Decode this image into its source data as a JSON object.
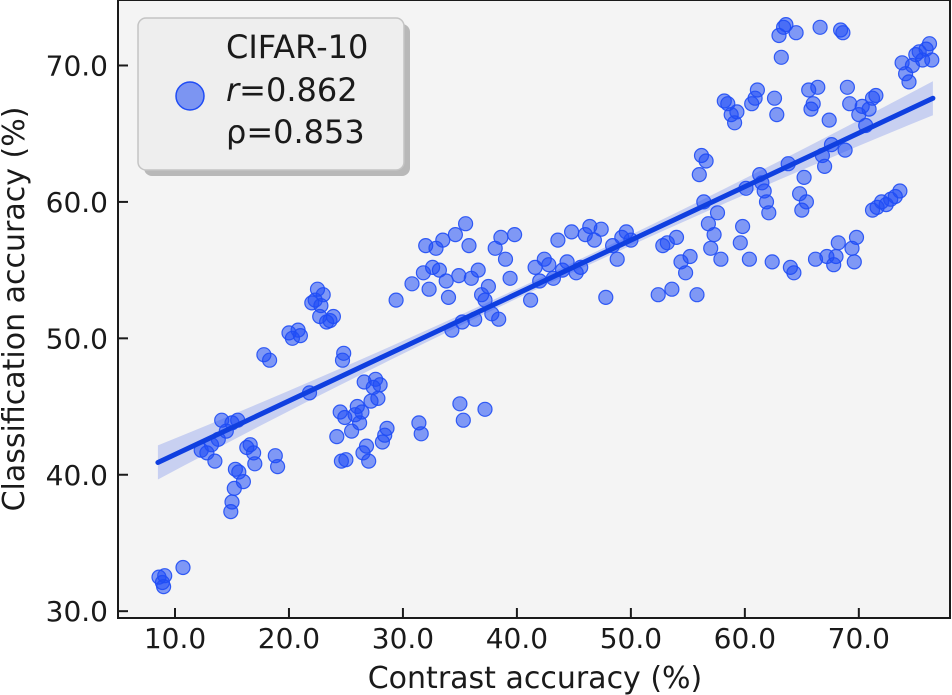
{
  "chart_data": {
    "type": "scatter",
    "title": "",
    "xlabel": "Contrast accuracy (%)",
    "ylabel": "Classification accuracy (%)",
    "xlim": [
      5.0,
      78.0
    ],
    "ylim": [
      29.5,
      74.8
    ],
    "xticks": [
      10.0,
      20.0,
      30.0,
      40.0,
      50.0,
      60.0,
      70.0
    ],
    "yticks": [
      30.0,
      40.0,
      50.0,
      60.0,
      70.0
    ],
    "xtick_labels": [
      "10.0",
      "20.0",
      "30.0",
      "40.0",
      "50.0",
      "60.0",
      "70.0"
    ],
    "ytick_labels": [
      "30.0",
      "40.0",
      "50.0",
      "60.0",
      "70.0"
    ],
    "grid": false,
    "legend": {
      "placement": "top-left",
      "dataset": "CIFAR-10",
      "r_symbol": "r",
      "r_value": "=0.862",
      "rho_text": "ρ=0.853"
    },
    "colors": {
      "points": "#1f4cf5",
      "fit_line": "#0f3fe0",
      "ci_band": "#aab8ee",
      "background": "#f4f4f4"
    },
    "fit_line": {
      "x": [
        8.5,
        76.5
      ],
      "y": [
        40.9,
        67.6
      ]
    },
    "series": [
      {
        "points": [
          [
            8.6,
            32.5
          ],
          [
            8.9,
            32.1
          ],
          [
            9.0,
            31.8
          ],
          [
            9.1,
            32.6
          ],
          [
            10.7,
            33.2
          ],
          [
            12.3,
            41.8
          ],
          [
            12.8,
            41.6
          ],
          [
            13.2,
            42.2
          ],
          [
            13.5,
            41.0
          ],
          [
            13.8,
            42.6
          ],
          [
            14.1,
            44.0
          ],
          [
            14.5,
            43.2
          ],
          [
            15.0,
            43.8
          ],
          [
            15.5,
            44.0
          ],
          [
            14.9,
            37.3
          ],
          [
            15.0,
            38.0
          ],
          [
            15.2,
            39.0
          ],
          [
            15.3,
            40.4
          ],
          [
            15.6,
            40.2
          ],
          [
            16.0,
            39.5
          ],
          [
            16.3,
            42.0
          ],
          [
            16.6,
            42.2
          ],
          [
            16.9,
            41.6
          ],
          [
            17.0,
            40.8
          ],
          [
            17.8,
            48.8
          ],
          [
            18.3,
            48.4
          ],
          [
            18.8,
            41.4
          ],
          [
            19.0,
            40.6
          ],
          [
            20.0,
            50.4
          ],
          [
            20.3,
            50.0
          ],
          [
            20.8,
            50.6
          ],
          [
            21.0,
            50.2
          ],
          [
            21.8,
            46.0
          ],
          [
            22.0,
            52.6
          ],
          [
            22.3,
            52.8
          ],
          [
            22.5,
            53.6
          ],
          [
            22.7,
            51.6
          ],
          [
            22.8,
            52.4
          ],
          [
            23.0,
            53.2
          ],
          [
            23.3,
            51.2
          ],
          [
            23.6,
            51.3
          ],
          [
            23.9,
            51.6
          ],
          [
            24.2,
            42.8
          ],
          [
            24.5,
            44.6
          ],
          [
            24.6,
            41.0
          ],
          [
            24.7,
            48.4
          ],
          [
            24.8,
            48.9
          ],
          [
            24.9,
            44.2
          ],
          [
            25.0,
            41.1
          ],
          [
            25.5,
            43.2
          ],
          [
            25.8,
            44.4
          ],
          [
            26.0,
            45.0
          ],
          [
            26.2,
            43.8
          ],
          [
            26.4,
            44.6
          ],
          [
            26.5,
            41.6
          ],
          [
            26.6,
            46.8
          ],
          [
            26.8,
            42.1
          ],
          [
            27.0,
            41.0
          ],
          [
            27.2,
            45.4
          ],
          [
            27.4,
            46.4
          ],
          [
            27.6,
            47.0
          ],
          [
            27.8,
            45.6
          ],
          [
            28.0,
            46.6
          ],
          [
            28.2,
            42.4
          ],
          [
            28.4,
            42.9
          ],
          [
            28.6,
            43.4
          ],
          [
            29.4,
            52.8
          ],
          [
            30.8,
            54.0
          ],
          [
            31.4,
            43.8
          ],
          [
            31.6,
            43.0
          ],
          [
            31.8,
            54.8
          ],
          [
            32.0,
            56.8
          ],
          [
            32.3,
            53.6
          ],
          [
            32.6,
            55.2
          ],
          [
            32.9,
            56.6
          ],
          [
            33.2,
            55.0
          ],
          [
            33.5,
            57.2
          ],
          [
            33.8,
            54.2
          ],
          [
            34.0,
            53.0
          ],
          [
            34.3,
            50.6
          ],
          [
            34.6,
            57.6
          ],
          [
            34.9,
            54.6
          ],
          [
            35.2,
            51.2
          ],
          [
            35.5,
            58.4
          ],
          [
            35.8,
            56.8
          ],
          [
            35.0,
            45.2
          ],
          [
            35.3,
            44.0
          ],
          [
            37.2,
            44.8
          ],
          [
            36.0,
            54.4
          ],
          [
            36.3,
            51.4
          ],
          [
            36.6,
            55.0
          ],
          [
            36.9,
            53.2
          ],
          [
            37.2,
            52.8
          ],
          [
            37.5,
            53.8
          ],
          [
            37.8,
            51.8
          ],
          [
            38.1,
            56.6
          ],
          [
            38.4,
            51.4
          ],
          [
            38.6,
            57.4
          ],
          [
            39.0,
            55.8
          ],
          [
            39.4,
            54.4
          ],
          [
            39.8,
            57.6
          ],
          [
            41.2,
            52.8
          ],
          [
            41.6,
            55.2
          ],
          [
            42.0,
            54.2
          ],
          [
            42.4,
            55.8
          ],
          [
            42.8,
            55.4
          ],
          [
            43.2,
            54.4
          ],
          [
            43.6,
            57.2
          ],
          [
            44.0,
            55.0
          ],
          [
            44.4,
            55.6
          ],
          [
            44.8,
            57.8
          ],
          [
            45.2,
            54.8
          ],
          [
            45.6,
            55.2
          ],
          [
            46.0,
            57.6
          ],
          [
            46.4,
            58.2
          ],
          [
            46.8,
            57.2
          ],
          [
            47.4,
            58.0
          ],
          [
            47.8,
            53.0
          ],
          [
            48.4,
            56.8
          ],
          [
            48.8,
            55.8
          ],
          [
            49.2,
            57.4
          ],
          [
            49.6,
            57.8
          ],
          [
            50.0,
            57.2
          ],
          [
            52.4,
            53.2
          ],
          [
            52.8,
            56.8
          ],
          [
            53.2,
            57.0
          ],
          [
            53.6,
            53.6
          ],
          [
            54.0,
            57.4
          ],
          [
            54.4,
            55.6
          ],
          [
            54.8,
            54.8
          ],
          [
            55.2,
            56.0
          ],
          [
            55.8,
            53.2
          ],
          [
            56.0,
            62.0
          ],
          [
            56.2,
            63.4
          ],
          [
            56.4,
            60.0
          ],
          [
            56.6,
            63.0
          ],
          [
            56.8,
            58.4
          ],
          [
            57.0,
            56.6
          ],
          [
            57.3,
            57.6
          ],
          [
            57.6,
            59.2
          ],
          [
            57.9,
            55.8
          ],
          [
            58.2,
            67.4
          ],
          [
            58.5,
            67.2
          ],
          [
            58.8,
            66.4
          ],
          [
            59.1,
            65.8
          ],
          [
            59.3,
            66.6
          ],
          [
            59.6,
            57.0
          ],
          [
            59.8,
            58.2
          ],
          [
            60.1,
            61.0
          ],
          [
            60.4,
            55.8
          ],
          [
            60.6,
            67.2
          ],
          [
            60.9,
            67.6
          ],
          [
            61.1,
            68.2
          ],
          [
            61.3,
            62.0
          ],
          [
            61.5,
            61.4
          ],
          [
            61.7,
            60.8
          ],
          [
            61.9,
            60.0
          ],
          [
            62.1,
            59.2
          ],
          [
            62.4,
            55.6
          ],
          [
            62.6,
            67.6
          ],
          [
            62.8,
            66.4
          ],
          [
            63.0,
            72.2
          ],
          [
            63.2,
            70.6
          ],
          [
            63.4,
            72.8
          ],
          [
            63.6,
            73.0
          ],
          [
            63.8,
            62.8
          ],
          [
            64.0,
            55.2
          ],
          [
            64.3,
            54.8
          ],
          [
            64.5,
            72.4
          ],
          [
            64.8,
            60.6
          ],
          [
            65.0,
            59.4
          ],
          [
            65.2,
            61.8
          ],
          [
            65.4,
            60.0
          ],
          [
            65.6,
            68.2
          ],
          [
            65.8,
            66.8
          ],
          [
            66.0,
            67.2
          ],
          [
            66.2,
            55.8
          ],
          [
            66.4,
            68.4
          ],
          [
            66.6,
            72.8
          ],
          [
            66.8,
            63.4
          ],
          [
            67.0,
            62.6
          ],
          [
            67.2,
            56.0
          ],
          [
            67.4,
            66.0
          ],
          [
            67.6,
            64.2
          ],
          [
            67.8,
            55.4
          ],
          [
            68.0,
            56.0
          ],
          [
            68.2,
            57.0
          ],
          [
            68.4,
            72.6
          ],
          [
            68.6,
            72.4
          ],
          [
            68.8,
            63.8
          ],
          [
            69.0,
            68.4
          ],
          [
            69.2,
            67.2
          ],
          [
            69.4,
            56.6
          ],
          [
            69.6,
            55.6
          ],
          [
            69.8,
            57.4
          ],
          [
            70.0,
            66.4
          ],
          [
            70.3,
            67.0
          ],
          [
            70.6,
            65.6
          ],
          [
            70.9,
            66.8
          ],
          [
            71.2,
            67.6
          ],
          [
            71.5,
            67.8
          ],
          [
            71.2,
            59.4
          ],
          [
            71.6,
            59.6
          ],
          [
            72.0,
            60.0
          ],
          [
            72.4,
            59.8
          ],
          [
            72.8,
            60.2
          ],
          [
            73.2,
            60.4
          ],
          [
            73.6,
            60.8
          ],
          [
            73.8,
            70.2
          ],
          [
            74.1,
            69.4
          ],
          [
            74.4,
            68.8
          ],
          [
            74.7,
            70.0
          ],
          [
            75.0,
            70.8
          ],
          [
            75.3,
            71.0
          ],
          [
            75.6,
            70.4
          ],
          [
            75.9,
            71.2
          ],
          [
            76.2,
            71.6
          ],
          [
            76.4,
            70.4
          ]
        ]
      }
    ]
  }
}
